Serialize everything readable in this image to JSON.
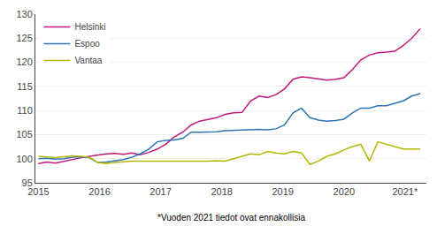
{
  "chart_data": {
    "type": "line",
    "subtitle": "*Vuoden 2021 tiedot ovat ennakollisia",
    "x": [
      2015,
      2015.138889,
      2015.277778,
      2015.416667,
      2015.555556,
      2015.694444,
      2015.833333,
      2015.972222,
      2016.111111,
      2016.25,
      2016.388889,
      2016.527778,
      2016.666667,
      2016.805556,
      2016.944444,
      2017.083333,
      2017.222222,
      2017.361111,
      2017.5,
      2017.638889,
      2017.777778,
      2017.916667,
      2018.055556,
      2018.194444,
      2018.333333,
      2018.472222,
      2018.611111,
      2018.75,
      2018.888889,
      2019.027778,
      2019.166667,
      2019.305556,
      2019.444444,
      2019.583333,
      2019.722222,
      2019.861111,
      2020,
      2020.138889,
      2020.277778,
      2020.416667,
      2020.555556,
      2020.694444,
      2020.833333,
      2020.972222,
      2021.111111,
      2021.25
    ],
    "series": [
      {
        "name": "Helsinki",
        "color": "#c0187a",
        "values": [
          99.0,
          99.3,
          99.1,
          99.5,
          99.8,
          100.2,
          100.5,
          100.8,
          101.0,
          101.1,
          100.9,
          101.2,
          100.8,
          101.3,
          102.0,
          103.0,
          104.5,
          105.5,
          107.0,
          107.8,
          108.2,
          108.5,
          109.2,
          109.5,
          109.6,
          112.0,
          113.0,
          112.7,
          113.3,
          114.5,
          116.5,
          117.0,
          116.8,
          116.5,
          116.3,
          116.5,
          116.8,
          118.5,
          120.5,
          121.5,
          122.0,
          122.1,
          122.3,
          123.5,
          125.0,
          127.0
        ]
      },
      {
        "name": "Espoo",
        "color": "#2e75b6",
        "values": [
          100.0,
          100.1,
          99.9,
          100.0,
          100.3,
          100.4,
          100.2,
          99.2,
          99.3,
          99.5,
          99.8,
          100.3,
          101.0,
          102.0,
          103.5,
          103.8,
          103.9,
          104.2,
          105.5,
          105.5,
          105.5,
          105.6,
          105.8,
          105.9,
          106.0,
          106.0,
          106.1,
          106.0,
          106.2,
          107.0,
          109.5,
          110.5,
          108.5,
          108.0,
          107.8,
          107.9,
          108.2,
          109.5,
          110.5,
          110.5,
          111.0,
          111.0,
          111.5,
          112.0,
          113.0,
          113.5
        ]
      },
      {
        "name": "Vantaa",
        "color": "#b5b800",
        "values": [
          100.5,
          100.3,
          100.2,
          100.4,
          100.6,
          100.5,
          100.3,
          99.2,
          99.0,
          99.2,
          99.4,
          99.5,
          99.5,
          99.5,
          99.5,
          99.5,
          99.4,
          99.5,
          99.5,
          99.5,
          99.5,
          99.6,
          99.5,
          100.0,
          100.5,
          101.0,
          100.8,
          101.5,
          101.2,
          101.0,
          101.5,
          101.2,
          98.8,
          99.5,
          100.5,
          101.0,
          101.8,
          102.5,
          103.0,
          99.5,
          103.5,
          103.0,
          102.5,
          102.0,
          102.0,
          102.0
        ]
      }
    ],
    "xlim": [
      2014.95,
      2021.35
    ],
    "xticks": [
      2015,
      2016,
      2017,
      2018,
      2019,
      2020,
      {
        "value": 2021,
        "label": "2021*"
      }
    ],
    "ylim": [
      95,
      130
    ],
    "yticks": [
      95,
      100,
      105,
      110,
      115,
      120,
      125,
      130
    ],
    "grid": "y",
    "legend": "upper left"
  }
}
